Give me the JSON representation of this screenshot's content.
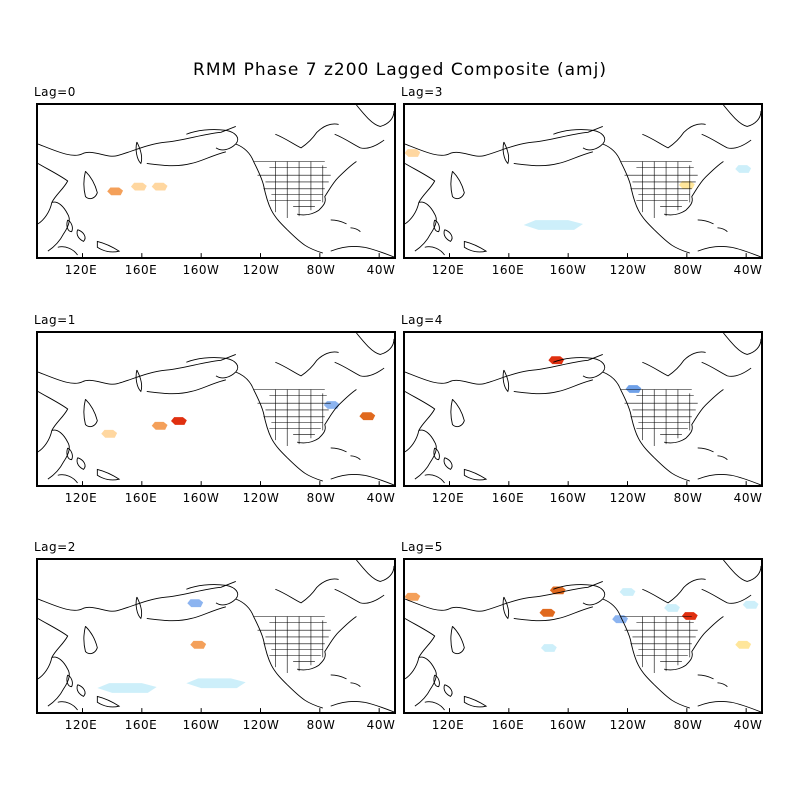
{
  "title": "RMM Phase 7 z200 Lagged Composite (amj)",
  "x_tick_labels": [
    "120E",
    "160E",
    "160W",
    "120W",
    "80W",
    "40W"
  ],
  "x_tick_lons": [
    120,
    160,
    200,
    240,
    280,
    320
  ],
  "map_extent": {
    "lon_min": 90,
    "lon_max": 330
  },
  "colors": {
    "light_orange": "#ffd7a0",
    "orange": "#f4a05a",
    "dark_orange": "#e0691e",
    "red": "#e03010",
    "yellow": "#ffe69a",
    "light_blue": "#cdeffa",
    "blue": "#8cb4f0",
    "mid_blue": "#6ea0e8"
  },
  "panels": [
    {
      "label": "Lag=0",
      "anomalies": [
        {
          "lon": 142,
          "lat": 21,
          "sign": "positive",
          "level": "orange"
        },
        {
          "lon": 158,
          "lat": 24,
          "sign": "positive",
          "level": "light_orange"
        },
        {
          "lon": 172,
          "lat": 24,
          "sign": "positive",
          "level": "light_orange"
        }
      ]
    },
    {
      "label": "Lag=3",
      "anomalies": [
        {
          "lon": 95,
          "lat": 45,
          "sign": "positive",
          "level": "light_orange"
        },
        {
          "lon": 280,
          "lat": 25,
          "sign": "positive",
          "level": "yellow"
        },
        {
          "lon": 190,
          "lat": 0,
          "sign": "negative",
          "level": "light_blue"
        },
        {
          "lon": 318,
          "lat": 35,
          "sign": "negative",
          "level": "light_blue"
        }
      ]
    },
    {
      "label": "Lag=1",
      "anomalies": [
        {
          "lon": 138,
          "lat": 12,
          "sign": "positive",
          "level": "light_orange"
        },
        {
          "lon": 172,
          "lat": 17,
          "sign": "positive",
          "level": "orange"
        },
        {
          "lon": 185,
          "lat": 20,
          "sign": "positive",
          "level": "red"
        },
        {
          "lon": 288,
          "lat": 30,
          "sign": "negative",
          "level": "blue"
        },
        {
          "lon": 312,
          "lat": 23,
          "sign": "positive",
          "level": "dark_orange"
        }
      ]
    },
    {
      "label": "Lag=4",
      "anomalies": [
        {
          "lon": 192,
          "lat": 58,
          "sign": "positive",
          "level": "red"
        },
        {
          "lon": 244,
          "lat": 40,
          "sign": "negative",
          "level": "mid_blue"
        }
      ]
    },
    {
      "label": "Lag=2",
      "anomalies": [
        {
          "lon": 196,
          "lat": 48,
          "sign": "negative",
          "level": "blue"
        },
        {
          "lon": 198,
          "lat": 22,
          "sign": "positive",
          "level": "orange"
        },
        {
          "lon": 150,
          "lat": -5,
          "sign": "negative",
          "level": "light_blue"
        },
        {
          "lon": 210,
          "lat": -2,
          "sign": "negative",
          "level": "light_blue"
        }
      ]
    },
    {
      "label": "Lag=5",
      "anomalies": [
        {
          "lon": 95,
          "lat": 52,
          "sign": "positive",
          "level": "orange"
        },
        {
          "lon": 193,
          "lat": 56,
          "sign": "positive",
          "level": "dark_orange"
        },
        {
          "lon": 186,
          "lat": 42,
          "sign": "positive",
          "level": "dark_orange"
        },
        {
          "lon": 240,
          "lat": 55,
          "sign": "negative",
          "level": "light_blue"
        },
        {
          "lon": 235,
          "lat": 38,
          "sign": "negative",
          "level": "blue"
        },
        {
          "lon": 270,
          "lat": 45,
          "sign": "negative",
          "level": "light_blue"
        },
        {
          "lon": 282,
          "lat": 40,
          "sign": "positive",
          "level": "red"
        },
        {
          "lon": 187,
          "lat": 20,
          "sign": "negative",
          "level": "light_blue"
        },
        {
          "lon": 318,
          "lat": 22,
          "sign": "positive",
          "level": "yellow"
        },
        {
          "lon": 323,
          "lat": 47,
          "sign": "negative",
          "level": "light_blue"
        }
      ]
    }
  ]
}
